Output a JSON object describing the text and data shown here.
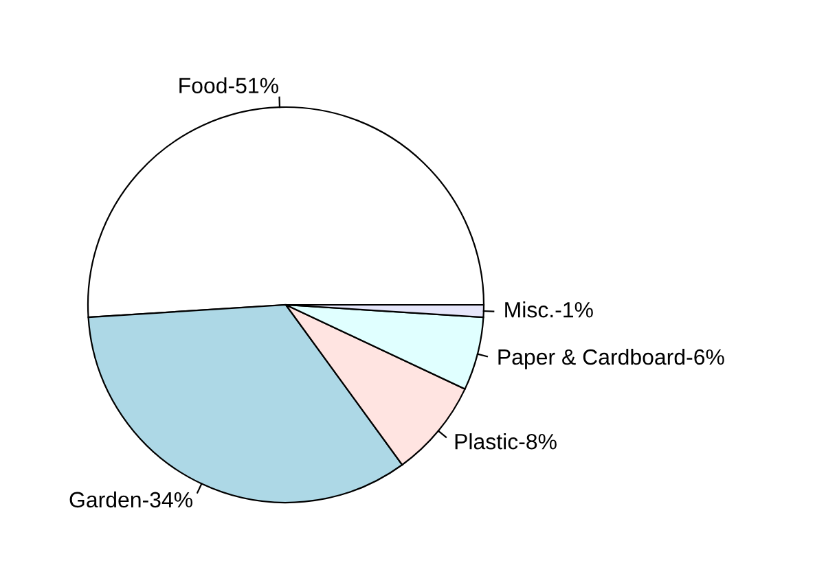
{
  "chart_data": {
    "type": "pie",
    "categories": [
      "Food-51%",
      "Garden-34%",
      "Plastic-8%",
      "Paper & Cardboard-6%",
      "Misc.-1%"
    ],
    "values": [
      51,
      34,
      8,
      6,
      1
    ],
    "colors": [
      "#ffffff",
      "#add8e6",
      "#ffe4e1",
      "#e0ffff",
      "#e6e6fa"
    ]
  }
}
